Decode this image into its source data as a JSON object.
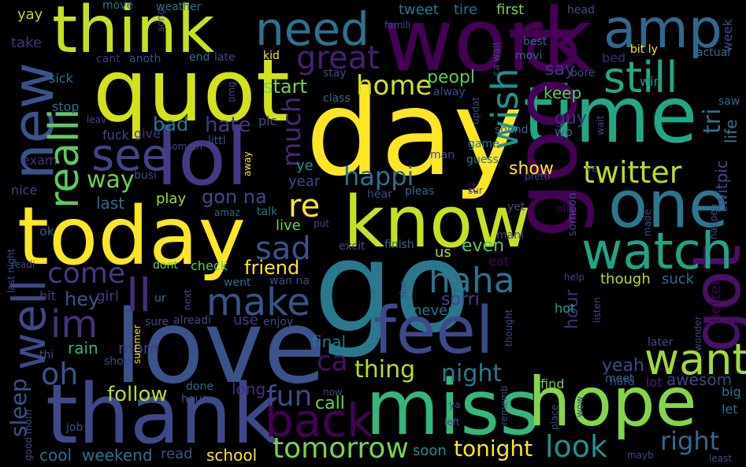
{
  "words": [
    {
      "text": "day",
      "color": "#fde725"
    },
    {
      "text": "go",
      "color": "#2a788e"
    },
    {
      "text": "love",
      "color": "#3b528b"
    },
    {
      "text": "work",
      "color": "#440154"
    },
    {
      "text": "today",
      "color": "#fde725"
    },
    {
      "text": "quot",
      "color": "#d2e21b"
    },
    {
      "text": "lol",
      "color": "#443983"
    },
    {
      "text": "know",
      "color": "#c7e020"
    },
    {
      "text": "think",
      "color": "#c7e020"
    },
    {
      "text": "time",
      "color": "#22a884"
    },
    {
      "text": "good",
      "color": "#440154"
    },
    {
      "text": "thank",
      "color": "#3e4989"
    },
    {
      "text": "miss",
      "color": "#35b779"
    },
    {
      "text": "hope",
      "color": "#86d549"
    },
    {
      "text": "new",
      "color": "#3b528b"
    },
    {
      "text": "one",
      "color": "#2a788e"
    },
    {
      "text": "got",
      "color": "#471164"
    },
    {
      "text": "feel",
      "color": "#3e4989"
    },
    {
      "text": "amp",
      "color": "#31688e"
    },
    {
      "text": "need",
      "color": "#2c728e"
    },
    {
      "text": "watch",
      "color": "#20a486"
    },
    {
      "text": "still",
      "color": "#22a884"
    },
    {
      "text": "want",
      "color": "#a0da39"
    },
    {
      "text": "realli",
      "color": "#5ec962"
    },
    {
      "text": "see",
      "color": "#414487"
    },
    {
      "text": "well",
      "color": "#3e4989"
    },
    {
      "text": "back",
      "color": "#440154"
    },
    {
      "text": "make",
      "color": "#3b528b"
    },
    {
      "text": "ll",
      "color": "#472d7b"
    },
    {
      "text": "im",
      "color": "#46327e"
    },
    {
      "text": "great",
      "color": "#481f70"
    },
    {
      "text": "twitter",
      "color": "#b5de2b"
    },
    {
      "text": "wish",
      "color": "#21918c"
    },
    {
      "text": "haha",
      "color": "#2c728e"
    },
    {
      "text": "home",
      "color": "#d2e21b"
    },
    {
      "text": "re",
      "color": "#fde725"
    },
    {
      "text": "sad",
      "color": "#3b528b"
    },
    {
      "text": "come",
      "color": "#443983"
    },
    {
      "text": "much",
      "color": "#482878"
    },
    {
      "text": "happi",
      "color": "#2c728e"
    },
    {
      "text": "oh",
      "color": "#3b528b"
    },
    {
      "text": "tomorrow",
      "color": "#7ad151"
    },
    {
      "text": "look",
      "color": "#21918c"
    },
    {
      "text": "thing",
      "color": "#b5de2b"
    },
    {
      "text": "night",
      "color": "#2a788e"
    },
    {
      "text": "right",
      "color": "#31688e"
    },
    {
      "text": "tri",
      "color": "#2c728e"
    },
    {
      "text": "way",
      "color": "#6ece58"
    },
    {
      "text": "fun",
      "color": "#3e4989"
    },
    {
      "text": "sleep",
      "color": "#3b528b"
    },
    {
      "text": "gon na",
      "color": "#3e4989"
    },
    {
      "text": "friend",
      "color": "#fde725"
    },
    {
      "text": "follow",
      "color": "#b5de2b"
    },
    {
      "text": "tonight",
      "color": "#fde725"
    },
    {
      "text": "hate",
      "color": "#443983"
    },
    {
      "text": "ca",
      "color": "#471164"
    },
    {
      "text": "peopl",
      "color": "#5ec962"
    },
    {
      "text": "start",
      "color": "#7ad151"
    },
    {
      "text": "bad",
      "color": "#2a788e"
    },
    {
      "text": "hour",
      "color": "#482878"
    },
    {
      "text": "sorri",
      "color": "#414487"
    },
    {
      "text": "yeah",
      "color": "#3e4989"
    },
    {
      "text": "even",
      "color": "#5ec962"
    },
    {
      "text": "show",
      "color": "#fde725"
    },
    {
      "text": "say",
      "color": "#46327e"
    },
    {
      "text": "hey",
      "color": "#3b528b"
    },
    {
      "text": "last",
      "color": "#31688e"
    },
    {
      "text": "weekend",
      "color": "#2c728e"
    },
    {
      "text": "school",
      "color": "#fde725"
    },
    {
      "text": "call",
      "color": "#6ece58"
    },
    {
      "text": "keep",
      "color": "#5ec962"
    },
    {
      "text": "guy",
      "color": "#472d7b"
    },
    {
      "text": "awesom",
      "color": "#414487"
    },
    {
      "text": "cool",
      "color": "#31688e"
    },
    {
      "text": "twitpic",
      "color": "#3e4989"
    },
    {
      "text": "life",
      "color": "#2a788e"
    },
    {
      "text": "final",
      "color": "#2c728e"
    },
    {
      "text": "rain",
      "color": "#35b779"
    },
    {
      "text": "morn",
      "color": "#443983"
    },
    {
      "text": "long",
      "color": "#472d7b"
    },
    {
      "text": "year",
      "color": "#3e4989"
    },
    {
      "text": "us",
      "color": "#a0da39"
    },
    {
      "text": "live",
      "color": "#6ece58"
    },
    {
      "text": "soon",
      "color": "#21918c"
    },
    {
      "text": "better",
      "color": "#440154"
    },
    {
      "text": "though",
      "color": "#b5de2b"
    },
    {
      "text": "suck",
      "color": "#31688e"
    },
    {
      "text": "tweet",
      "color": "#2a788e"
    },
    {
      "text": "tire",
      "color": "#2c728e"
    },
    {
      "text": "first",
      "color": "#7ad151"
    },
    {
      "text": "play",
      "color": "#a0da39"
    },
    {
      "text": "lt",
      "color": "#440154"
    },
    {
      "text": "use",
      "color": "#443983"
    },
    {
      "text": "girl",
      "color": "#443983"
    },
    {
      "text": "never",
      "color": "#2c728e"
    },
    {
      "text": "week",
      "color": "#3e4989"
    },
    {
      "text": "ye",
      "color": "#21918c"
    },
    {
      "text": "take",
      "color": "#46327e"
    },
    {
      "text": "yay",
      "color": "#b5de2b"
    },
    {
      "text": "read",
      "color": "#3b528b"
    },
    {
      "text": "eat",
      "color": "#440154"
    },
    {
      "text": "bed",
      "color": "#482878"
    },
    {
      "text": "win",
      "color": "#21918c"
    },
    {
      "text": "wo",
      "color": "#31688e"
    },
    {
      "text": "later",
      "color": "#3e4989"
    },
    {
      "text": "meet",
      "color": "#31688e"
    },
    {
      "text": "hot",
      "color": "#20a486"
    },
    {
      "text": "lot",
      "color": "#481f70"
    },
    {
      "text": "hard",
      "color": "#3e4989"
    },
    {
      "text": "find",
      "color": "#6ece58"
    },
    {
      "text": "big",
      "color": "#2c728e"
    },
    {
      "text": "let",
      "color": "#31688e"
    },
    {
      "text": "check",
      "color": "#5ec962"
    },
    {
      "text": "dont",
      "color": "#6ece58"
    },
    {
      "text": "busi",
      "color": "#3e4989"
    },
    {
      "text": "give",
      "color": "#46327e"
    },
    {
      "text": "littl",
      "color": "#3b528b"
    },
    {
      "text": "pic",
      "color": "#3b528b"
    },
    {
      "text": "exam",
      "color": "#46327e"
    },
    {
      "text": "fuck",
      "color": "#3e4989"
    },
    {
      "text": "sick",
      "color": "#2c728e"
    },
    {
      "text": "stop",
      "color": "#31688e"
    },
    {
      "text": "nice",
      "color": "#414487"
    },
    {
      "text": "ok",
      "color": "#3b528b"
    },
    {
      "text": "bit",
      "color": "#46327e"
    },
    {
      "text": "thi",
      "color": "#3b528b"
    },
    {
      "text": "shop",
      "color": "#3e4989"
    },
    {
      "text": "done",
      "color": "#31688e"
    },
    {
      "text": "hous",
      "color": "#3e4989"
    },
    {
      "text": "job",
      "color": "#3b528b"
    },
    {
      "text": "ur",
      "color": "#2c728e"
    },
    {
      "text": "sure",
      "color": "#3e4989"
    },
    {
      "text": "alreadi",
      "color": "#3e4989"
    },
    {
      "text": "enjoy",
      "color": "#3e4989"
    },
    {
      "text": "went",
      "color": "#31688e"
    },
    {
      "text": "wan na",
      "color": "#3e4989"
    },
    {
      "text": "talk",
      "color": "#2c728e"
    },
    {
      "text": "amaz",
      "color": "#31688e"
    },
    {
      "text": "put",
      "color": "#3e4989"
    },
    {
      "text": "excit",
      "color": "#3e4989"
    },
    {
      "text": "finish",
      "color": "#31688e"
    },
    {
      "text": "mani",
      "color": "#3e4989"
    },
    {
      "text": "old",
      "color": "#440154"
    },
    {
      "text": "yet",
      "color": "#3e4989"
    },
    {
      "text": "pleas",
      "color": "#31688e"
    },
    {
      "text": "hear",
      "color": "#3e4989"
    },
    {
      "text": "guess",
      "color": "#2c728e"
    },
    {
      "text": "game",
      "color": "#2c728e"
    },
    {
      "text": "sound",
      "color": "#31688e"
    },
    {
      "text": "man",
      "color": "#3e4989"
    },
    {
      "text": "class",
      "color": "#31688e"
    },
    {
      "text": "alway",
      "color": "#3e4989"
    },
    {
      "text": "stay",
      "color": "#3e4989"
    },
    {
      "text": "kid",
      "color": "#fde725"
    },
    {
      "text": "end",
      "color": "#2c728e"
    },
    {
      "text": "late",
      "color": "#3e4989"
    },
    {
      "text": "cant",
      "color": "#46327e"
    },
    {
      "text": "anoth",
      "color": "#3b528b"
    },
    {
      "text": "move",
      "color": "#2c728e"
    },
    {
      "text": "weather",
      "color": "#2c728e"
    },
    {
      "text": "head",
      "color": "#3e4989"
    },
    {
      "text": "best",
      "color": "#31688e"
    },
    {
      "text": "movi",
      "color": "#31688e"
    },
    {
      "text": "bit ly",
      "color": "#fde725"
    },
    {
      "text": "actual",
      "color": "#2c728e"
    },
    {
      "text": "bore",
      "color": "#3e4989"
    },
    {
      "text": "saw",
      "color": "#31688e"
    },
    {
      "text": "made",
      "color": "#3e4989"
    },
    {
      "text": "happen",
      "color": "#3e4989"
    },
    {
      "text": "help",
      "color": "#3e4989"
    },
    {
      "text": "listen",
      "color": "#3e4989"
    },
    {
      "text": "wonder",
      "color": "#3e4989"
    },
    {
      "text": "least",
      "color": "#3e4989"
    },
    {
      "text": "mayb",
      "color": "#3e4989"
    },
    {
      "text": "place",
      "color": "#3e4989"
    },
    {
      "text": "wow",
      "color": "#3e4989"
    },
    {
      "text": "left",
      "color": "#3e4989"
    },
    {
      "text": "ya",
      "color": "#3e4989"
    },
    {
      "text": "rememb",
      "color": "#3e4989"
    },
    {
      "text": "someon",
      "color": "#3e4989"
    },
    {
      "text": "pretti",
      "color": "#3e4989"
    },
    {
      "text": "sinc",
      "color": "#3e4989"
    },
    {
      "text": "next",
      "color": "#3e4989"
    },
    {
      "text": "away",
      "color": "#fde725"
    },
    {
      "text": "omg",
      "color": "#3e4989"
    },
    {
      "text": "famili",
      "color": "#3e4989"
    },
    {
      "text": "ca wait",
      "color": "#3e4989"
    },
    {
      "text": "updat",
      "color": "#3e4989"
    },
    {
      "text": "sometn",
      "color": "#3e4989"
    },
    {
      "text": "leav",
      "color": "#3e4989"
    },
    {
      "text": "song",
      "color": "#3e4989"
    },
    {
      "text": "thought",
      "color": "#3e4989"
    },
    {
      "text": "summer",
      "color": "#fde725"
    },
    {
      "text": "readi",
      "color": "#3e4989"
    },
    {
      "text": "last night",
      "color": "#3e4989"
    },
    {
      "text": "good morn",
      "color": "#3e4989"
    },
    {
      "text": "now",
      "color": "#3e4989"
    },
    {
      "text": "sur",
      "color": "#3e4989"
    },
    {
      "text": "wait",
      "color": "#3e4989"
    },
    {
      "text": "ve",
      "color": "#3e4989"
    }
  ]
}
